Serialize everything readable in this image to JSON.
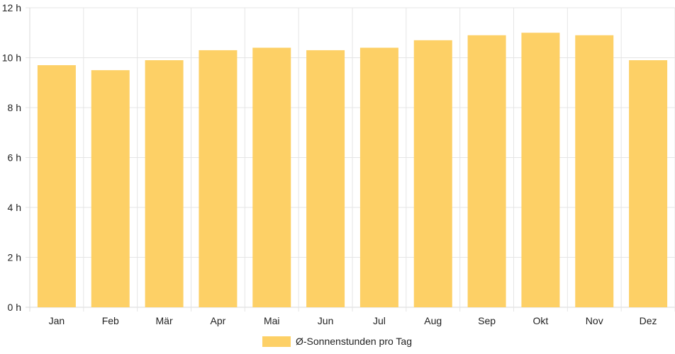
{
  "chart_data": {
    "type": "bar",
    "categories": [
      "Jan",
      "Feb",
      "Mär",
      "Apr",
      "Mai",
      "Jun",
      "Jul",
      "Aug",
      "Sep",
      "Okt",
      "Nov",
      "Dez"
    ],
    "series": [
      {
        "name": "Ø-Sonnenstunden pro Tag",
        "values": [
          9.7,
          9.5,
          9.9,
          10.3,
          10.4,
          10.3,
          10.4,
          10.7,
          10.9,
          11.0,
          10.9,
          9.9
        ],
        "color": "#fdd066"
      }
    ],
    "y_ticks": [
      "0 h",
      "2 h",
      "4 h",
      "6 h",
      "8 h",
      "10 h",
      "12 h"
    ],
    "ylim": [
      0,
      12
    ],
    "grid": true,
    "legend_position": "bottom"
  }
}
